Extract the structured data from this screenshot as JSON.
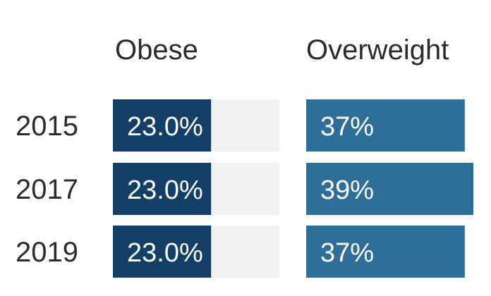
{
  "chart_data": {
    "type": "bar",
    "categories": [
      "2015",
      "2017",
      "2019"
    ],
    "series": [
      {
        "name": "Obese",
        "values": [
          23.0,
          23.0,
          23.0
        ],
        "labels": [
          "23.0%",
          "23.0%",
          "23.0%"
        ],
        "color": "#133f66",
        "track_color": "#f2f2f2"
      },
      {
        "name": "Overweight",
        "values": [
          37,
          39,
          37
        ],
        "labels": [
          "37%",
          "39%",
          "37%"
        ],
        "color": "#2e6e99"
      }
    ],
    "xlim": [
      0,
      39
    ],
    "unit": "%",
    "grid": false,
    "legend": "column titles above bars"
  }
}
